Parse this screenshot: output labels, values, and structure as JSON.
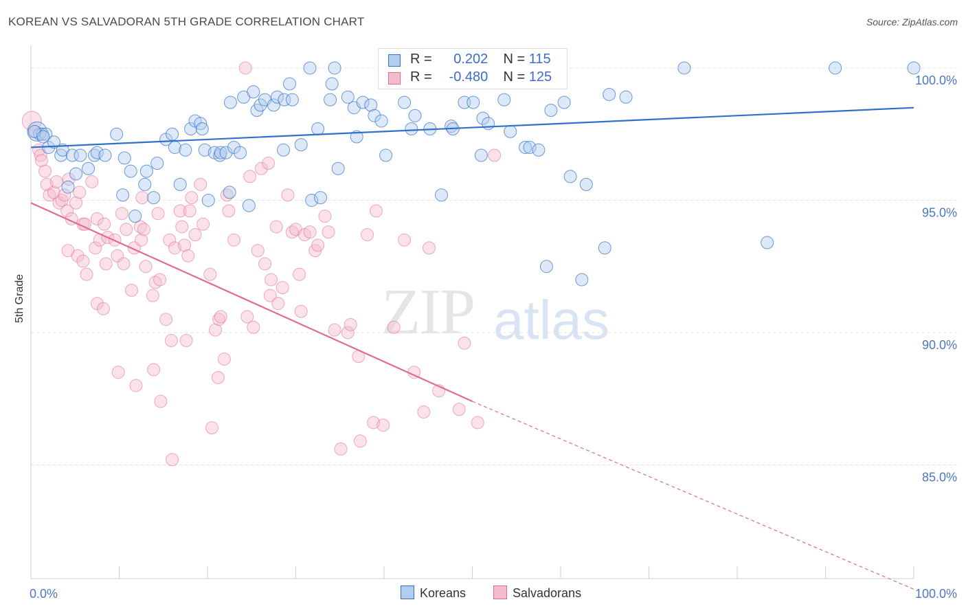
{
  "title": "KOREAN VS SALVADORAN 5TH GRADE CORRELATION CHART",
  "source": "Source: ZipAtlas.com",
  "watermark_a": "ZIP",
  "watermark_b": "atlas",
  "colors": {
    "blue": "#3070c8",
    "blue_fill": "#b3cdf0",
    "pink": "#e06a96",
    "pink_fill": "#f5bcd0",
    "tick": "#4a78c2"
  },
  "legend": {
    "r_label": "R =",
    "n_label": "N =",
    "korean_r": "0.202",
    "korean_n": "115",
    "salvadoran_r": "-0.480",
    "salvadoran_n": "125"
  },
  "bottom_legend": {
    "koreans": "Koreans",
    "salvadorans": "Salvadorans"
  },
  "chart_data": {
    "type": "scatter",
    "title": "KOREAN VS SALVADORAN 5TH GRADE CORRELATION CHART",
    "xlabel": "",
    "ylabel": "5th Grade",
    "xlim": [
      0,
      100
    ],
    "ylim": [
      80.7,
      100.7
    ],
    "x_tick_labels": [
      "0.0%",
      "100.0%"
    ],
    "y_ticks": [
      85,
      90,
      95,
      100
    ],
    "y_tick_labels": [
      "85.0%",
      "90.0%",
      "95.0%",
      "100.0%"
    ],
    "grid": true,
    "legend_placement": "top-center",
    "series": [
      {
        "name": "Koreans",
        "r": 0.202,
        "n": 115,
        "trend": {
          "x": [
            0,
            100
          ],
          "y": [
            97.0,
            98.5
          ]
        },
        "points": [
          [
            0.7,
            97.6
          ],
          [
            1.0,
            97.5
          ],
          [
            1.3,
            97.5
          ],
          [
            1.7,
            97.5
          ],
          [
            0.4,
            97.6
          ],
          [
            1.4,
            97.4
          ],
          [
            2.0,
            97.0
          ],
          [
            2.6,
            97.2
          ],
          [
            3.4,
            96.7
          ],
          [
            3.6,
            96.9
          ],
          [
            4.2,
            95.5
          ],
          [
            4.7,
            96.7
          ],
          [
            5.1,
            96.0
          ],
          [
            5.6,
            96.7
          ],
          [
            6.5,
            96.2
          ],
          [
            7.2,
            96.7
          ],
          [
            7.5,
            96.8
          ],
          [
            8.4,
            96.7
          ],
          [
            9.7,
            97.5
          ],
          [
            10.4,
            95.2
          ],
          [
            10.6,
            96.6
          ],
          [
            11.3,
            96.1
          ],
          [
            11.8,
            94.4
          ],
          [
            12.9,
            95.6
          ],
          [
            13.1,
            96.1
          ],
          [
            13.9,
            95.1
          ],
          [
            14.3,
            96.4
          ],
          [
            15.3,
            97.3
          ],
          [
            16.0,
            97.5
          ],
          [
            16.3,
            97.0
          ],
          [
            16.9,
            95.6
          ],
          [
            17.5,
            96.9
          ],
          [
            18.1,
            97.7
          ],
          [
            18.6,
            98.0
          ],
          [
            19.2,
            97.9
          ],
          [
            19.4,
            97.7
          ],
          [
            19.7,
            96.9
          ],
          [
            20.1,
            95.0
          ],
          [
            20.8,
            96.8
          ],
          [
            21.4,
            96.7
          ],
          [
            21.5,
            96.8
          ],
          [
            22.1,
            96.8
          ],
          [
            22.5,
            95.3
          ],
          [
            22.6,
            98.7
          ],
          [
            23.0,
            97.0
          ],
          [
            23.7,
            96.8
          ],
          [
            24.1,
            98.9
          ],
          [
            24.7,
            94.8
          ],
          [
            25.2,
            99.1
          ],
          [
            25.6,
            98.4
          ],
          [
            26.0,
            98.6
          ],
          [
            26.5,
            98.8
          ],
          [
            27.5,
            98.6
          ],
          [
            27.9,
            98.9
          ],
          [
            28.6,
            96.9
          ],
          [
            28.7,
            98.8
          ],
          [
            29.3,
            99.4
          ],
          [
            29.6,
            98.8
          ],
          [
            30.6,
            97.1
          ],
          [
            31.6,
            100.0
          ],
          [
            31.8,
            95.0
          ],
          [
            32.5,
            97.7
          ],
          [
            32.8,
            95.1
          ],
          [
            33.9,
            98.8
          ],
          [
            34.1,
            99.4
          ],
          [
            34.4,
            100.0
          ],
          [
            34.8,
            96.2
          ],
          [
            35.9,
            98.9
          ],
          [
            36.6,
            98.5
          ],
          [
            36.9,
            97.4
          ],
          [
            37.6,
            98.7
          ],
          [
            38.5,
            98.6
          ],
          [
            38.9,
            98.2
          ],
          [
            39.7,
            98.0
          ],
          [
            40.2,
            96.7
          ],
          [
            40.6,
            100.0
          ],
          [
            41.2,
            100.0
          ],
          [
            42.3,
            98.7
          ],
          [
            43.1,
            97.7
          ],
          [
            43.5,
            98.2
          ],
          [
            45.2,
            97.7
          ],
          [
            46.5,
            95.2
          ],
          [
            47.6,
            97.8
          ],
          [
            47.8,
            97.7
          ],
          [
            48.6,
            100.0
          ],
          [
            49.1,
            98.7
          ],
          [
            50.1,
            98.7
          ],
          [
            51.0,
            96.7
          ],
          [
            51.2,
            98.1
          ],
          [
            51.8,
            97.9
          ],
          [
            53.5,
            100.0
          ],
          [
            53.6,
            98.8
          ],
          [
            54.3,
            97.6
          ],
          [
            54.9,
            100.0
          ],
          [
            56.0,
            97.0
          ],
          [
            56.5,
            97.0
          ],
          [
            57.5,
            96.9
          ],
          [
            58.4,
            92.5
          ],
          [
            58.9,
            98.4
          ],
          [
            60.4,
            98.7
          ],
          [
            61.1,
            95.9
          ],
          [
            62.4,
            92.0
          ],
          [
            62.9,
            95.6
          ],
          [
            65.0,
            93.2
          ],
          [
            65.5,
            99.0
          ],
          [
            67.4,
            98.9
          ],
          [
            74.0,
            100.0
          ],
          [
            83.4,
            93.4
          ],
          [
            91.1,
            100.0
          ],
          [
            100.0,
            100.0
          ]
        ]
      },
      {
        "name": "Salvadorans",
        "r": -0.48,
        "n": 125,
        "trend": {
          "x": [
            0,
            50
          ],
          "y": [
            94.9,
            87.4
          ]
        },
        "trend_dashed": {
          "x": [
            50,
            100
          ],
          "y": [
            87.4,
            80.3
          ]
        },
        "points": [
          [
            0.1,
            98.0
          ],
          [
            0.5,
            97.6
          ],
          [
            0.9,
            96.9
          ],
          [
            1.1,
            96.7
          ],
          [
            1.2,
            96.5
          ],
          [
            1.6,
            96.1
          ],
          [
            1.8,
            95.6
          ],
          [
            2.1,
            95.2
          ],
          [
            2.6,
            95.3
          ],
          [
            2.9,
            95.7
          ],
          [
            3.2,
            94.9
          ],
          [
            3.5,
            95.0
          ],
          [
            3.8,
            95.2
          ],
          [
            4.1,
            94.6
          ],
          [
            4.2,
            93.1
          ],
          [
            4.3,
            95.8
          ],
          [
            4.6,
            94.3
          ],
          [
            5.1,
            94.9
          ],
          [
            5.3,
            92.9
          ],
          [
            5.5,
            95.3
          ],
          [
            5.9,
            94.1
          ],
          [
            5.9,
            92.7
          ],
          [
            6.1,
            94.1
          ],
          [
            6.3,
            92.2
          ],
          [
            6.9,
            95.7
          ],
          [
            7.3,
            93.2
          ],
          [
            7.5,
            91.1
          ],
          [
            7.5,
            94.3
          ],
          [
            7.8,
            93.5
          ],
          [
            8.2,
            90.9
          ],
          [
            8.3,
            94.1
          ],
          [
            8.5,
            92.6
          ],
          [
            8.7,
            93.6
          ],
          [
            9.5,
            93.5
          ],
          [
            9.8,
            92.9
          ],
          [
            9.9,
            88.5
          ],
          [
            10.3,
            94.5
          ],
          [
            10.5,
            92.6
          ],
          [
            10.8,
            93.9
          ],
          [
            11.4,
            91.6
          ],
          [
            11.7,
            93.2
          ],
          [
            11.9,
            88.0
          ],
          [
            12.4,
            94.0
          ],
          [
            12.5,
            93.5
          ],
          [
            12.6,
            95.1
          ],
          [
            12.8,
            93.9
          ],
          [
            13.0,
            92.5
          ],
          [
            13.8,
            91.4
          ],
          [
            13.9,
            88.6
          ],
          [
            14.1,
            91.9
          ],
          [
            14.4,
            94.5
          ],
          [
            14.6,
            92.0
          ],
          [
            14.7,
            87.4
          ],
          [
            15.3,
            90.5
          ],
          [
            15.7,
            93.5
          ],
          [
            15.9,
            89.7
          ],
          [
            16.0,
            85.2
          ],
          [
            16.3,
            93.2
          ],
          [
            16.9,
            94.6
          ],
          [
            17.1,
            94.0
          ],
          [
            17.4,
            93.3
          ],
          [
            17.6,
            89.7
          ],
          [
            17.8,
            92.9
          ],
          [
            18.0,
            94.6
          ],
          [
            18.2,
            95.1
          ],
          [
            18.6,
            93.7
          ],
          [
            19.2,
            95.6
          ],
          [
            19.5,
            94.1
          ],
          [
            20.3,
            92.2
          ],
          [
            20.5,
            86.4
          ],
          [
            20.9,
            90.1
          ],
          [
            21.2,
            88.3
          ],
          [
            21.3,
            90.5
          ],
          [
            21.5,
            90.6
          ],
          [
            21.9,
            89.0
          ],
          [
            22.2,
            95.2
          ],
          [
            22.4,
            94.6
          ],
          [
            23.0,
            93.5
          ],
          [
            24.5,
            90.6
          ],
          [
            24.8,
            95.9
          ],
          [
            25.2,
            90.2
          ],
          [
            25.7,
            93.1
          ],
          [
            26.1,
            96.2
          ],
          [
            26.5,
            92.6
          ],
          [
            26.9,
            96.4
          ],
          [
            27.1,
            91.4
          ],
          [
            27.2,
            92.0
          ],
          [
            27.8,
            94.0
          ],
          [
            28.0,
            91.1
          ],
          [
            28.5,
            91.7
          ],
          [
            29.1,
            95.2
          ],
          [
            29.6,
            93.8
          ],
          [
            30.0,
            93.9
          ],
          [
            30.4,
            92.2
          ],
          [
            30.6,
            90.8
          ],
          [
            31.0,
            93.7
          ],
          [
            31.6,
            93.8
          ],
          [
            32.2,
            93.1
          ],
          [
            32.5,
            93.3
          ],
          [
            33.3,
            94.4
          ],
          [
            33.7,
            93.8
          ],
          [
            34.4,
            90.1
          ],
          [
            35.1,
            85.6
          ],
          [
            35.9,
            90.0
          ],
          [
            36.2,
            90.3
          ],
          [
            37.1,
            89.1
          ],
          [
            37.3,
            85.9
          ],
          [
            38.1,
            93.7
          ],
          [
            38.8,
            86.6
          ],
          [
            39.1,
            94.6
          ],
          [
            39.9,
            86.5
          ],
          [
            41.1,
            90.2
          ],
          [
            42.3,
            93.5
          ],
          [
            43.4,
            88.5
          ],
          [
            44.5,
            87.0
          ],
          [
            45.1,
            93.2
          ],
          [
            46.2,
            87.8
          ],
          [
            48.5,
            87.1
          ],
          [
            49.1,
            89.6
          ],
          [
            50.6,
            86.6
          ],
          [
            52.5,
            96.7
          ],
          [
            24.3,
            100.0
          ]
        ]
      }
    ]
  }
}
